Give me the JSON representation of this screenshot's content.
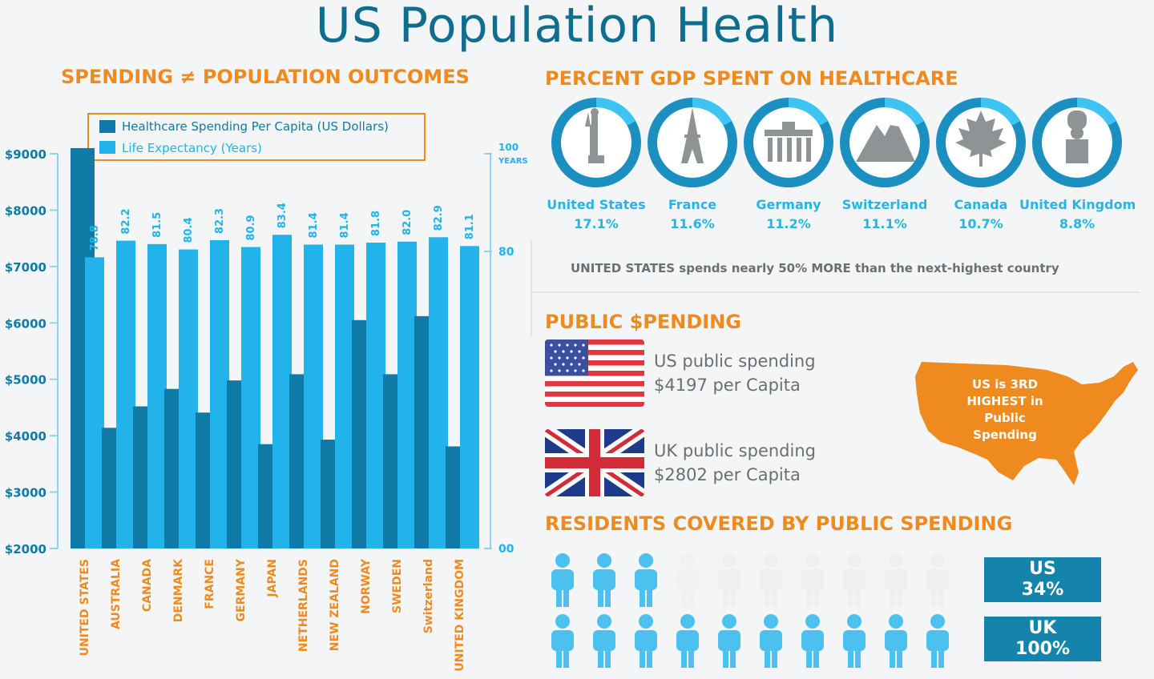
{
  "page_title": "US Population Health",
  "sections": {
    "spending": "SPENDING ≠ POPULATION OUTCOMES",
    "gdp": "PERCENT GDP SPENT ON HEALTHCARE",
    "public": "PUBLIC $PENDING",
    "residents": "RESIDENTS COVERED BY PUBLIC SPENDING"
  },
  "chart_data": {
    "type": "bar",
    "categories": [
      "UNITED STATES",
      "AUSTRALIA",
      "CANADA",
      "DENMARK",
      "FRANCE",
      "GERMANY",
      "JAPAN",
      "NETHERLANDS",
      "NEW ZEALAND",
      "NORWAY",
      "SWEDEN",
      "Switzerland",
      "UNITED KINGDOM"
    ],
    "series": [
      {
        "name": "Healthcare Spending Per Capita (US Dollars)",
        "axis": "left",
        "color": "#0f7aa6",
        "values": [
          9100,
          4140,
          4520,
          4830,
          4410,
          4980,
          3850,
          5090,
          3930,
          6050,
          5090,
          6120,
          3810
        ]
      },
      {
        "name": "Life Expectancy (Years)",
        "axis": "right",
        "color": "#22b3ea",
        "values": [
          78.8,
          82.2,
          81.5,
          80.4,
          82.3,
          80.9,
          83.4,
          81.4,
          81.4,
          81.8,
          82.0,
          82.9,
          81.1
        ],
        "labels": [
          "78.8",
          "82.2",
          "81.5",
          "80.4",
          "82.3",
          "80.9",
          "83.4",
          "81.4",
          "81.4",
          "81.8",
          "82.0",
          "82.9",
          "81.1"
        ]
      }
    ],
    "left_axis": {
      "ticks": [
        "$9000",
        "$8000",
        "$7000",
        "$6000",
        "$5000",
        "$4000",
        "$3000",
        "$2000"
      ],
      "ylim": [
        2000,
        9000
      ]
    },
    "right_axis": {
      "ticks": [
        "100",
        "80",
        "00"
      ],
      "unit": "YEARS"
    },
    "legend": "top"
  },
  "gdp_items": [
    {
      "country": "United States",
      "percent": "17.1%",
      "icon": "statue-of-liberty-icon"
    },
    {
      "country": "France",
      "percent": "11.6%",
      "icon": "eiffel-tower-icon"
    },
    {
      "country": "Germany",
      "percent": "11.2%",
      "icon": "brandenburg-gate-icon"
    },
    {
      "country": "Switzerland",
      "percent": "11.1%",
      "icon": "mountain-icon"
    },
    {
      "country": "Canada",
      "percent": "10.7%",
      "icon": "maple-leaf-icon"
    },
    {
      "country": "United Kingdom",
      "percent": "8.8%",
      "icon": "royal-guard-icon"
    }
  ],
  "gdp_note": "UNITED STATES spends nearly 50% MORE than the next-highest country",
  "public_spending": {
    "us_line1": "US public spending",
    "us_line2": "$4197 per Capita",
    "uk_line1": "UK public spending",
    "uk_line2": "$2802 per Capita",
    "map_label": "US is 3RD HIGHEST in Public Spending"
  },
  "residents": {
    "us_label": "US",
    "us_pct": "34%",
    "uk_label": "UK",
    "uk_pct": "100%"
  },
  "colors": {
    "accent": "#ef8a1f",
    "dark_blue": "#0f7aa6",
    "light_blue": "#22b3ea",
    "title": "#0f6d8f"
  }
}
